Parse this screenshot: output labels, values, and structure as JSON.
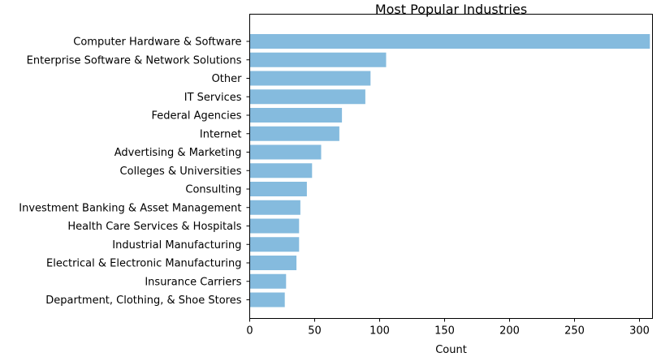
{
  "chart_data": {
    "type": "bar",
    "orientation": "horizontal",
    "title": "Most Popular Industries",
    "xlabel": "Count",
    "ylabel": "",
    "xlim": [
      0,
      310
    ],
    "xticks": [
      0,
      50,
      100,
      150,
      200,
      250,
      300
    ],
    "bar_color": "#85bbde",
    "grid": false,
    "categories": [
      "Computer Hardware & Software",
      "Enterprise Software & Network Solutions",
      "Other",
      "IT Services",
      "Federal Agencies",
      "Internet",
      "Advertising & Marketing",
      "Colleges & Universities",
      "Consulting",
      "Investment Banking & Asset Management",
      "Health Care Services & Hospitals",
      "Industrial Manufacturing",
      "Electrical & Electronic Manufacturing",
      "Insurance Carriers",
      "Department, Clothing, & Shoe Stores"
    ],
    "values": [
      308,
      105,
      93,
      89,
      71,
      69,
      55,
      48,
      44,
      39,
      38,
      38,
      36,
      28,
      27
    ]
  }
}
